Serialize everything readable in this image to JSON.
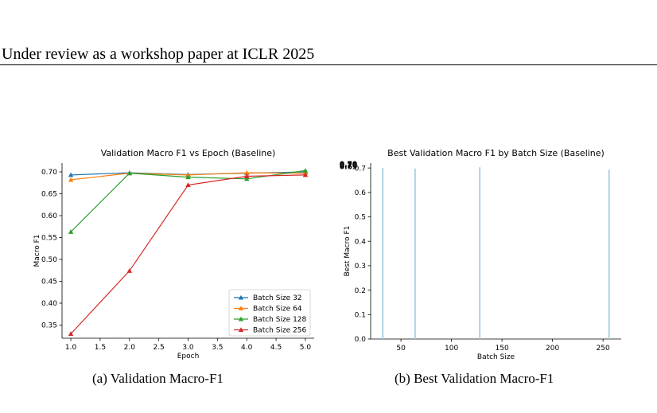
{
  "header": {
    "text": "Under review as a workshop paper at ICLR 2025"
  },
  "captions": {
    "a": "(a)  Validation Macro-F1",
    "b": "(b)  Best Validation Macro-F1"
  },
  "chart_data": [
    {
      "type": "line",
      "title": "Validation Macro F1 vs Epoch (Baseline)",
      "xlabel": "Epoch",
      "ylabel": "Macro F1",
      "xlim": [
        0.85,
        5.15
      ],
      "ylim": [
        0.32,
        0.72
      ],
      "xticks": [
        "1.0",
        "1.5",
        "2.0",
        "2.5",
        "3.0",
        "3.5",
        "4.0",
        "4.5",
        "5.0"
      ],
      "yticks": [
        "0.35",
        "0.40",
        "0.45",
        "0.50",
        "0.55",
        "0.60",
        "0.65",
        "0.70"
      ],
      "grid": false,
      "legend_position": "lower-right",
      "x": [
        1.0,
        2.0,
        3.0,
        4.0,
        5.0
      ],
      "series": [
        {
          "name": "Batch Size 32",
          "color": "#1f77b4",
          "values": [
            0.693,
            0.698,
            0.694,
            0.697,
            0.7
          ]
        },
        {
          "name": "Batch Size 64",
          "color": "#ff7f0e",
          "values": [
            0.682,
            0.697,
            0.693,
            0.698,
            0.697
          ]
        },
        {
          "name": "Batch Size 128",
          "color": "#2ca02c",
          "values": [
            0.563,
            0.697,
            0.688,
            0.684,
            0.703
          ]
        },
        {
          "name": "Batch Size 256",
          "color": "#d62728",
          "values": [
            0.33,
            0.474,
            0.67,
            0.69,
            0.693
          ]
        }
      ]
    },
    {
      "type": "bar",
      "title": "Best Validation Macro F1 by Batch Size (Baseline)",
      "xlabel": "Batch Size",
      "ylabel": "Best Macro F1",
      "xlim": [
        20,
        268
      ],
      "ylim": [
        0,
        0.72
      ],
      "xticks": [
        "50",
        "100",
        "150",
        "200",
        "250"
      ],
      "yticks": [
        "0.0",
        "0.1",
        "0.2",
        "0.3",
        "0.4",
        "0.5",
        "0.6",
        "0.7"
      ],
      "grid": false,
      "bar_color": "#a6cee3",
      "x": [
        32,
        64,
        128,
        256
      ],
      "values": [
        0.7,
        0.698,
        0.703,
        0.693
      ],
      "data_labels": [
        "0.70",
        "0.70",
        "0.70",
        "0.69"
      ]
    }
  ]
}
